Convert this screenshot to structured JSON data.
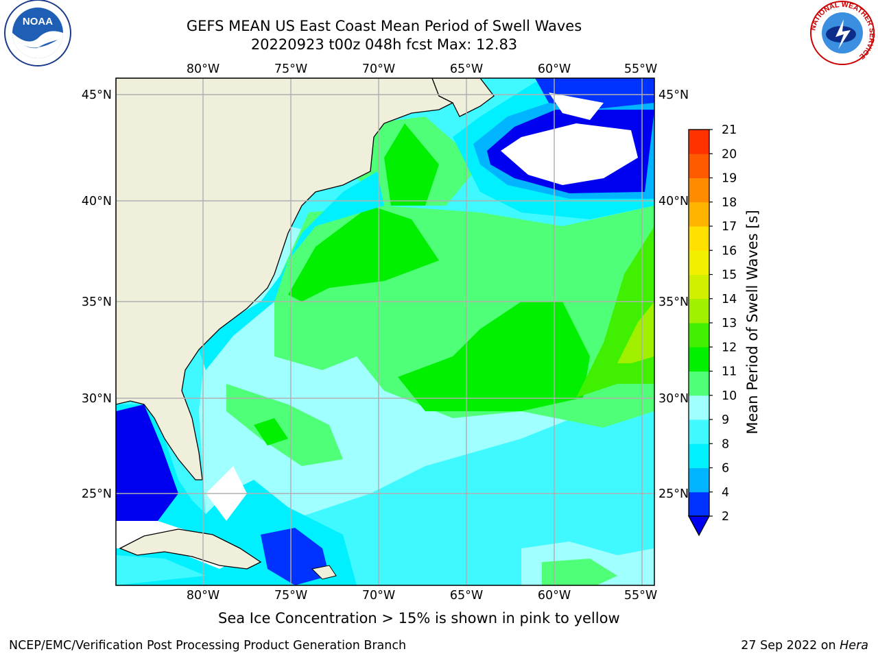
{
  "title_line1": "GEFS MEAN US East Coast Mean Period of Swell Waves",
  "title_line2": "20220923 t00z 048h fcst   Max: 12.83",
  "lon_labels": [
    "80°W",
    "75°W",
    "70°W",
    "65°W",
    "60°W",
    "55°W"
  ],
  "lat_labels": [
    "45°N",
    "40°N",
    "35°N",
    "30°N",
    "25°N"
  ],
  "colorbar": {
    "label": "Mean Period of Swell Waves [s]",
    "ticks": [
      "2",
      "4",
      "6",
      "8",
      "9",
      "10",
      "11",
      "12",
      "13",
      "14",
      "15",
      "16",
      "17",
      "18",
      "19",
      "20",
      "21"
    ],
    "colors": [
      "#0032ff",
      "#00b4ff",
      "#00f0ff",
      "#40f8ff",
      "#a0ffff",
      "#50ff78",
      "#00f000",
      "#40f000",
      "#a0f000",
      "#d0f000",
      "#f0f000",
      "#ffe000",
      "#ffb400",
      "#ff8c00",
      "#ff5a00",
      "#ff3200",
      "#ff0000"
    ],
    "extend_color": "#0000f0"
  },
  "footer_ice": "Sea Ice Concentration > 15% is shown in pink to yellow",
  "footer_branch": "NCEP/EMC/Verification Post Processing Product Generation Branch",
  "footer_date": "27 Sep 2022 on ",
  "footer_machine": "Hera",
  "logos": {
    "left": "NOAA",
    "right_ring": "NATIONAL WEATHER SERVICE"
  }
}
